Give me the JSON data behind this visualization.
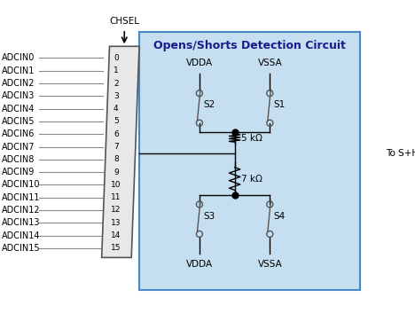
{
  "title": "Opens/Shorts Detection Circuit",
  "box_color": "#c5dff0",
  "box_border_color": "#4a86c8",
  "background_color": "#ffffff",
  "adcin_labels": [
    "ADCIN0",
    "ADCIN1",
    "ADCIN2",
    "ADCIN3",
    "ADCIN4",
    "ADCIN5",
    "ADCIN6",
    "ADCIN7",
    "ADCIN8",
    "ADCIN9",
    "ADCIN10",
    "ADCIN11",
    "ADCIN12",
    "ADCIN13",
    "ADCIN14",
    "ADCIN15"
  ],
  "channel_numbers": [
    "0",
    "1",
    "2",
    "3",
    "4",
    "5",
    "6",
    "7",
    "8",
    "9",
    "10",
    "11",
    "12",
    "13",
    "14",
    "15"
  ],
  "chsel_label": "CHSEL",
  "vdda_label": "VDDA",
  "vssa_label": "VSSA",
  "s1_label": "S1",
  "s2_label": "S2",
  "s3_label": "S3",
  "s4_label": "S4",
  "r1_label": "5 kΩ",
  "r2_label": "7 kΩ",
  "to_sh_label": "To S+H",
  "line_color": "#000000",
  "mux_fill": "#e8e8e8",
  "mux_border": "#555555",
  "switch_color": "#666666",
  "node_color": "#000000"
}
